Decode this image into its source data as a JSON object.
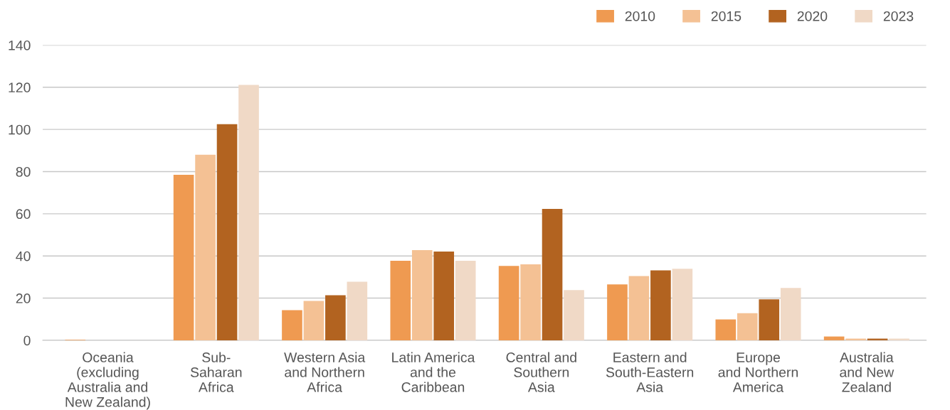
{
  "chart_data": {
    "type": "bar",
    "categories": [
      "Oceania\n(excluding\nAustralia and\nNew Zealand)",
      "Sub-\nSaharan\nAfrica",
      "Western Asia\nand Northern\nAfrica",
      "Latin America\nand the\nCaribbean",
      "Central and\nSouthern\nAsia",
      "Eastern and\nSouth-Eastern\nAsia",
      "Europe\nand Northern\nAmerica",
      "Australia\nand New\nZealand"
    ],
    "series": [
      {
        "name": "2010",
        "color": "#ef9a51",
        "values": [
          0.2,
          78.5,
          14.3,
          37.7,
          35.3,
          26.5,
          9.9,
          1.8
        ]
      },
      {
        "name": "2015",
        "color": "#f4c194",
        "values": [
          null,
          88.0,
          18.7,
          42.8,
          36.0,
          30.5,
          12.9,
          0.8
        ]
      },
      {
        "name": "2020",
        "color": "#b26320",
        "values": [
          null,
          102.5,
          21.4,
          42.1,
          62.3,
          33.2,
          19.4,
          0.8
        ]
      },
      {
        "name": "2023",
        "color": "#f0d9c6",
        "values": [
          null,
          121.1,
          27.8,
          37.7,
          23.8,
          33.9,
          24.8,
          0.8
        ]
      }
    ],
    "ylim": [
      0,
      140
    ],
    "yticks": [
      0,
      20,
      40,
      60,
      80,
      100,
      120,
      140
    ],
    "grid": "y",
    "legend": "top right"
  }
}
